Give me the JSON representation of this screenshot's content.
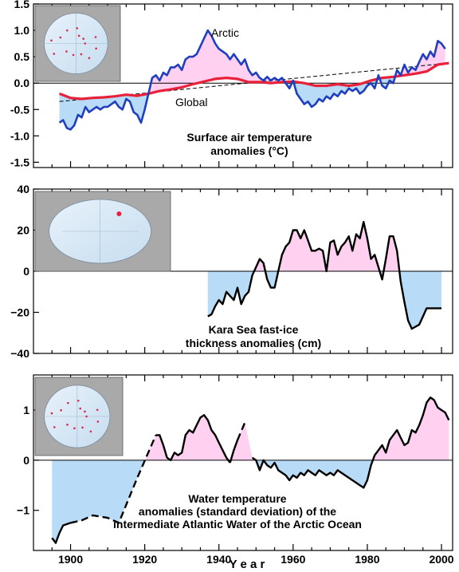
{
  "colors": {
    "arctic": "#1f3fbf",
    "global": "#e8203a",
    "warm_fill": "#ffd0f0",
    "cold_fill": "#b8dcf7",
    "axis": "#000000",
    "inset_bg": "#a9a9a9"
  },
  "x_axis": {
    "label": "Y e a r",
    "xlim": [
      1890,
      2003
    ],
    "ticks": [
      "1900",
      "1920",
      "1940",
      "1960",
      "1980",
      "2000"
    ]
  },
  "chart_data": [
    {
      "type": "line",
      "panel": "top",
      "annotation": [
        "Surface air temperature",
        "anomalies  (°C)"
      ],
      "ylim": [
        -1.6,
        1.5
      ],
      "ytick_labels": [
        "1.5",
        "1.0",
        "0.5",
        "0.0",
        "-0.5",
        "-1.0",
        "-1.5"
      ],
      "inset": "map-icon",
      "series": [
        {
          "name": "Arctic",
          "color": "#1f3fbf",
          "x": [
            1897,
            1898,
            1899,
            1900,
            1901,
            1902,
            1903,
            1904,
            1905,
            1906,
            1907,
            1908,
            1909,
            1910,
            1911,
            1912,
            1913,
            1914,
            1915,
            1916,
            1917,
            1918,
            1919,
            1920,
            1921,
            1922,
            1923,
            1924,
            1925,
            1926,
            1927,
            1928,
            1929,
            1930,
            1931,
            1932,
            1933,
            1934,
            1935,
            1936,
            1937,
            1938,
            1939,
            1940,
            1941,
            1942,
            1943,
            1944,
            1945,
            1946,
            1947,
            1948,
            1949,
            1950,
            1951,
            1952,
            1953,
            1954,
            1955,
            1956,
            1957,
            1958,
            1959,
            1960,
            1961,
            1962,
            1963,
            1964,
            1965,
            1966,
            1967,
            1968,
            1969,
            1970,
            1971,
            1972,
            1973,
            1974,
            1975,
            1976,
            1977,
            1978,
            1979,
            1980,
            1981,
            1982,
            1983,
            1984,
            1985,
            1986,
            1987,
            1988,
            1989,
            1990,
            1991,
            1992,
            1993,
            1994,
            1995,
            1996,
            1997,
            1998,
            1999,
            2000,
            2001
          ],
          "y": [
            -0.75,
            -0.7,
            -0.85,
            -0.88,
            -0.8,
            -0.6,
            -0.65,
            -0.45,
            -0.55,
            -0.5,
            -0.45,
            -0.5,
            -0.45,
            -0.45,
            -0.4,
            -0.35,
            -0.45,
            -0.5,
            -0.3,
            -0.35,
            -0.55,
            -0.6,
            -0.75,
            -0.5,
            -0.2,
            0.1,
            0.15,
            0.05,
            0.2,
            0.15,
            0.3,
            0.3,
            0.35,
            0.25,
            0.45,
            0.5,
            0.5,
            0.55,
            0.7,
            0.85,
            1.0,
            0.9,
            0.75,
            0.65,
            0.6,
            0.55,
            0.45,
            0.55,
            0.45,
            0.35,
            0.45,
            0.25,
            0.15,
            0.2,
            0.1,
            0.05,
            0.12,
            0.05,
            0.1,
            0.05,
            0.1,
            0.0,
            -0.1,
            0.05,
            -0.2,
            -0.3,
            -0.4,
            -0.35,
            -0.45,
            -0.4,
            -0.3,
            -0.35,
            -0.25,
            -0.3,
            -0.2,
            -0.25,
            -0.15,
            -0.2,
            -0.1,
            -0.15,
            -0.1,
            -0.2,
            -0.15,
            -0.05,
            0.0,
            -0.1,
            0.15,
            -0.05,
            -0.1,
            0.05,
            0.0,
            0.25,
            0.15,
            0.35,
            0.2,
            0.3,
            0.25,
            0.4,
            0.55,
            0.45,
            0.6,
            0.5,
            0.8,
            0.75,
            0.65
          ]
        },
        {
          "name": "Global",
          "color": "#e8203a",
          "x": [
            1897,
            1900,
            1903,
            1906,
            1909,
            1912,
            1915,
            1918,
            1921,
            1924,
            1927,
            1930,
            1933,
            1936,
            1939,
            1942,
            1945,
            1948,
            1951,
            1954,
            1957,
            1960,
            1963,
            1966,
            1969,
            1972,
            1975,
            1978,
            1981,
            1984,
            1987,
            1990,
            1993,
            1996,
            1999,
            2002
          ],
          "y": [
            -0.2,
            -0.28,
            -0.3,
            -0.28,
            -0.27,
            -0.25,
            -0.22,
            -0.24,
            -0.2,
            -0.15,
            -0.12,
            -0.08,
            -0.02,
            0.03,
            0.08,
            0.1,
            0.08,
            0.02,
            0.02,
            0.0,
            0.02,
            0.03,
            0.0,
            -0.05,
            -0.05,
            -0.02,
            -0.05,
            -0.02,
            0.05,
            0.1,
            0.12,
            0.15,
            0.18,
            0.22,
            0.35,
            0.38
          ]
        }
      ],
      "trend": {
        "x": [
          1897,
          2002
        ],
        "y": [
          -0.35,
          0.38
        ]
      }
    },
    {
      "type": "line",
      "panel": "middle",
      "annotation": [
        "Kara Sea fast-ice",
        "thickness anomalies  (cm)"
      ],
      "ylim": [
        -40,
        40
      ],
      "ytick_labels": [
        "40",
        "20",
        "0",
        "−20",
        "−40"
      ],
      "inset": "map-icon",
      "series": [
        {
          "name": "",
          "color": "#000000",
          "x": [
            1937,
            1938,
            1939,
            1940,
            1941,
            1942,
            1943,
            1944,
            1945,
            1946,
            1947,
            1948,
            1949,
            1950,
            1951,
            1952,
            1953,
            1954,
            1955,
            1956,
            1957,
            1958,
            1959,
            1960,
            1961,
            1962,
            1963,
            1964,
            1965,
            1966,
            1967,
            1968,
            1969,
            1970,
            1971,
            1972,
            1973,
            1974,
            1975,
            1976,
            1977,
            1978,
            1979,
            1980,
            1981,
            1982,
            1983,
            1984,
            1985,
            1986,
            1987,
            1988,
            1989,
            1990,
            1991,
            1992,
            1993,
            1994,
            1995,
            1996,
            1997,
            1998,
            1999,
            2000
          ],
          "y": [
            -22,
            -21,
            -17,
            -14,
            -16,
            -10,
            -12,
            -14,
            -8,
            -16,
            -12,
            -10,
            -2,
            2,
            6,
            4,
            -4,
            -8,
            -8,
            0,
            8,
            12,
            14,
            20,
            20,
            16,
            20,
            15,
            10,
            10,
            11,
            10,
            0,
            14,
            15,
            8,
            12,
            14,
            17,
            10,
            18,
            16,
            24,
            16,
            6,
            8,
            2,
            -4,
            6,
            17,
            17,
            10,
            -5,
            -15,
            -24,
            -28,
            -27,
            -26,
            -22,
            -18,
            -18,
            -18,
            -18,
            -18
          ]
        }
      ]
    },
    {
      "type": "line",
      "panel": "bottom",
      "annotation": [
        "Water temperature",
        "anomalies (standard deviation) of the",
        "intermediate Atlantic Water of the Arctic Ocean"
      ],
      "ylim": [
        -1.8,
        1.7
      ],
      "ytick_labels": [
        "1",
        "0",
        "−1"
      ],
      "inset": "map-icon",
      "series": [
        {
          "name": "",
          "color": "#000000",
          "segments": [
            {
              "style": "solid",
              "x": [
                1895,
                1896,
                1897,
                1898,
                1900
              ],
              "y": [
                -1.55,
                -1.65,
                -1.45,
                -1.3,
                -1.25
              ]
            },
            {
              "style": "dashed",
              "x": [
                1900,
                1903,
                1906,
                1910,
                1913,
                1918,
                1923
              ],
              "y": [
                -1.25,
                -1.2,
                -1.1,
                -1.15,
                -1.25,
                -0.35,
                0.5
              ]
            },
            {
              "style": "solid",
              "x": [
                1923,
                1924,
                1925,
                1926,
                1927,
                1928,
                1929,
                1930,
                1931,
                1932,
                1933,
                1934,
                1935,
                1936,
                1937,
                1938,
                1939,
                1940,
                1941,
                1942,
                1943
              ],
              "y": [
                0.5,
                0.5,
                0.3,
                0.05,
                0.0,
                0.15,
                0.1,
                0.15,
                0.5,
                0.6,
                0.55,
                0.7,
                0.85,
                0.9,
                0.8,
                0.6,
                0.5,
                0.35,
                0.2,
                0.05,
                -0.05
              ]
            },
            {
              "style": "solid",
              "x": [
                1943,
                1944,
                1945
              ],
              "y": [
                -0.05,
                0.2,
                0.4
              ]
            },
            {
              "style": "dashed",
              "x": [
                1945,
                1947
              ],
              "y": [
                0.4,
                0.75
              ]
            },
            {
              "style": "solid",
              "x": [
                1949,
                1950,
                1951,
                1952,
                1953,
                1954,
                1955,
                1956,
                1957,
                1958,
                1959,
                1960,
                1961,
                1962,
                1963,
                1964,
                1965,
                1966,
                1967,
                1968,
                1969,
                1970,
                1971,
                1972,
                1973,
                1974,
                1975,
                1976,
                1977,
                1978,
                1979,
                1980,
                1981,
                1982,
                1983,
                1984,
                1985,
                1986,
                1987,
                1988,
                1989,
                1990,
                1991,
                1992,
                1993,
                1994,
                1995,
                1996,
                1997,
                1998,
                1999,
                2000,
                2001,
                2002
              ],
              "y": [
                0.05,
                0.0,
                -0.2,
                0.0,
                -0.1,
                -0.15,
                -0.05,
                -0.2,
                -0.25,
                -0.3,
                -0.4,
                -0.3,
                -0.35,
                -0.25,
                -0.3,
                -0.2,
                -0.25,
                -0.3,
                -0.2,
                -0.25,
                -0.3,
                -0.25,
                -0.3,
                -0.2,
                -0.25,
                -0.3,
                -0.35,
                -0.4,
                -0.45,
                -0.5,
                -0.55,
                -0.4,
                -0.1,
                0.1,
                0.2,
                0.3,
                0.15,
                0.4,
                0.5,
                0.6,
                0.45,
                0.3,
                0.35,
                0.6,
                0.55,
                0.7,
                0.9,
                1.15,
                1.25,
                1.2,
                1.05,
                1.0,
                0.95,
                0.8
              ]
            }
          ]
        }
      ]
    }
  ]
}
